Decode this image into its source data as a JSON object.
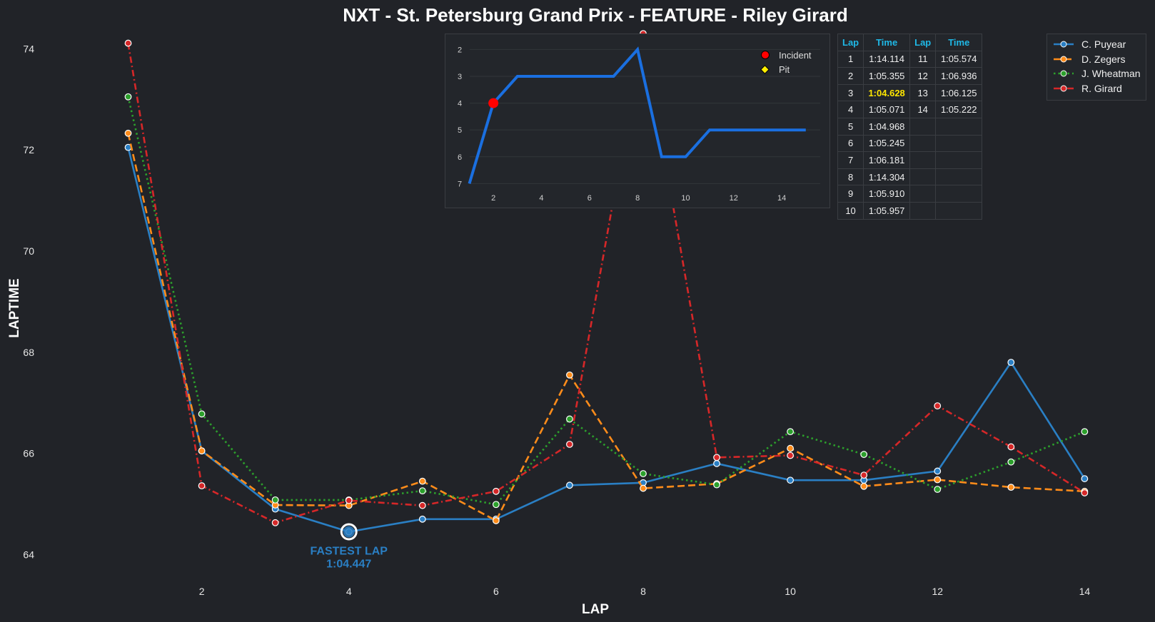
{
  "colors": {
    "background": "#212328",
    "text": "#e6e6e6",
    "table_header": "#1fb8e6",
    "fastest_highlight": "#ffe600",
    "fastest_annotation": "#2a7fc4",
    "position_line": "#1a6fe0",
    "incident": "#ff0000",
    "pit": "#ffee00"
  },
  "chart_data": [
    {
      "type": "line",
      "title": "NXT - St. Petersburg Grand Prix - FEATURE - Riley Girard",
      "xlabel": "LAP",
      "ylabel": "LAPTIME",
      "xlim": [
        0.5,
        14.2
      ],
      "ylim": [
        63.4,
        74.4
      ],
      "xticks": [
        2,
        4,
        6,
        8,
        10,
        12,
        14
      ],
      "yticks": [
        64,
        66,
        68,
        70,
        72,
        74
      ],
      "grid": false,
      "legend_position": "top-right",
      "x": [
        1,
        2,
        3,
        4,
        5,
        6,
        7,
        8,
        9,
        10,
        11,
        12,
        13,
        14
      ],
      "series": [
        {
          "name": "C. Puyear",
          "color": "#2a7fc4",
          "style": "solid",
          "values": [
            72.05,
            66.05,
            64.9,
            64.45,
            64.7,
            64.7,
            65.37,
            65.42,
            65.8,
            65.47,
            65.47,
            65.65,
            67.8,
            65.5
          ]
        },
        {
          "name": "D. Zegers",
          "color": "#ff8c1a",
          "style": "dashed",
          "values": [
            72.33,
            66.05,
            64.98,
            64.97,
            65.45,
            64.67,
            67.55,
            65.31,
            65.4,
            66.1,
            65.35,
            65.48,
            65.33,
            65.25
          ]
        },
        {
          "name": "J. Wheatman",
          "color": "#2ca02c",
          "style": "dotted",
          "values": [
            73.05,
            66.78,
            65.08,
            65.08,
            65.26,
            64.99,
            66.68,
            65.6,
            65.38,
            66.43,
            65.98,
            65.29,
            65.83,
            66.43
          ]
        },
        {
          "name": "R. Girard",
          "color": "#d62728",
          "style": "dashdot",
          "values": [
            74.11,
            65.36,
            64.63,
            65.07,
            64.97,
            65.25,
            66.18,
            74.3,
            65.92,
            65.96,
            65.57,
            66.94,
            66.13,
            65.22
          ]
        }
      ],
      "annotation": {
        "label": "FASTEST LAP",
        "value": "1:04.447",
        "x": 4,
        "y": 64.45
      }
    },
    {
      "type": "line",
      "title": "",
      "xlabel": "",
      "ylabel": "",
      "y_inverted": true,
      "xlim": [
        0.6,
        15.6
      ],
      "ylim": [
        7.15,
        1.75
      ],
      "xticks": [
        2,
        4,
        6,
        8,
        10,
        12,
        14
      ],
      "yticks": [
        2,
        3,
        4,
        5,
        6,
        7
      ],
      "grid": true,
      "legend_position": "top-right",
      "x": [
        1,
        2,
        3,
        4,
        5,
        6,
        7,
        8,
        9,
        10,
        11,
        12,
        13,
        14,
        15
      ],
      "positions": [
        7,
        4,
        3,
        3,
        3,
        3,
        3,
        2,
        6,
        6,
        5,
        5,
        5,
        5,
        5
      ],
      "incidents": [
        2
      ],
      "pits": [],
      "legend": [
        "Incident",
        "Pit"
      ]
    }
  ],
  "lap_table": {
    "headers": [
      "Lap",
      "Time",
      "Lap",
      "Time"
    ],
    "rows": [
      [
        "1",
        "1:14.114",
        "11",
        "1:05.574"
      ],
      [
        "2",
        "1:05.355",
        "12",
        "1:06.936"
      ],
      [
        "3",
        "1:04.628",
        "13",
        "1:06.125"
      ],
      [
        "4",
        "1:05.071",
        "14",
        "1:05.222"
      ],
      [
        "5",
        "1:04.968",
        "",
        ""
      ],
      [
        "6",
        "1:05.245",
        "",
        ""
      ],
      [
        "7",
        "1:06.181",
        "",
        ""
      ],
      [
        "8",
        "1:14.304",
        "",
        ""
      ],
      [
        "9",
        "1:05.910",
        "",
        ""
      ],
      [
        "10",
        "1:05.957",
        "",
        ""
      ]
    ],
    "fastest_time": "1:04.628"
  }
}
